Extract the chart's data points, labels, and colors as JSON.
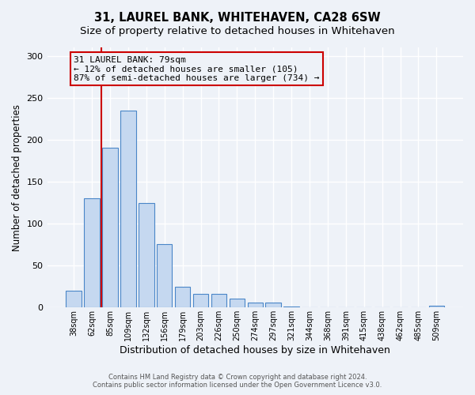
{
  "title": "31, LAUREL BANK, WHITEHAVEN, CA28 6SW",
  "subtitle": "Size of property relative to detached houses in Whitehaven",
  "xlabel": "Distribution of detached houses by size in Whitehaven",
  "ylabel": "Number of detached properties",
  "bar_labels": [
    "38sqm",
    "62sqm",
    "85sqm",
    "109sqm",
    "132sqm",
    "156sqm",
    "179sqm",
    "203sqm",
    "226sqm",
    "250sqm",
    "274sqm",
    "297sqm",
    "321sqm",
    "344sqm",
    "368sqm",
    "391sqm",
    "415sqm",
    "438sqm",
    "462sqm",
    "485sqm",
    "509sqm"
  ],
  "bar_values": [
    20,
    130,
    190,
    235,
    125,
    76,
    25,
    16,
    16,
    11,
    6,
    6,
    1,
    0,
    0,
    0,
    0,
    0,
    0,
    0,
    2
  ],
  "bar_color": "#c5d8f0",
  "bar_edge_color": "#4a86c8",
  "vline_color": "#cc0000",
  "vline_x": 1.5,
  "annotation_line1": "31 LAUREL BANK: 79sqm",
  "annotation_line2": "← 12% of detached houses are smaller (105)",
  "annotation_line3": "87% of semi-detached houses are larger (734) →",
  "annotation_box_color": "#cc0000",
  "ylim": [
    0,
    310
  ],
  "yticks": [
    0,
    50,
    100,
    150,
    200,
    250,
    300
  ],
  "footer1": "Contains HM Land Registry data © Crown copyright and database right 2024.",
  "footer2": "Contains public sector information licensed under the Open Government Licence v3.0.",
  "background_color": "#eef2f8",
  "title_fontsize": 10.5,
  "subtitle_fontsize": 9.5
}
